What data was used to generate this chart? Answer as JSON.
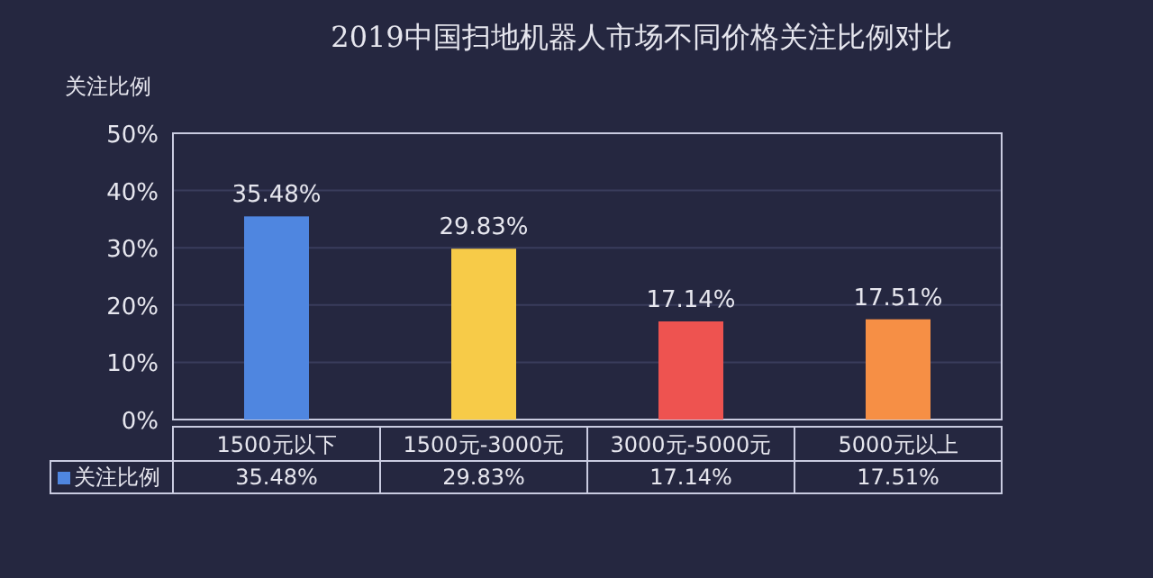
{
  "chart_data": {
    "type": "bar",
    "title": "2019中国扫地机器人市场不同价格关注比例对比",
    "ylabel": "关注比例",
    "categories": [
      "1500元以下",
      "1500元-3000元",
      "3000元-5000元",
      "5000元以上"
    ],
    "series": [
      {
        "name": "关注比例",
        "color": "#4f86e0",
        "colors": [
          "#4f86e0",
          "#f7cb48",
          "#ee5350",
          "#f68f45"
        ],
        "values": [
          35.48,
          29.83,
          17.14,
          17.51
        ],
        "value_labels": [
          "35.48%",
          "29.83%",
          "17.14%",
          "17.51%"
        ]
      }
    ],
    "ylim": [
      0,
      50
    ],
    "yticks": [
      {
        "value": 0,
        "label": "0%"
      },
      {
        "value": 10,
        "label": "10%"
      },
      {
        "value": 20,
        "label": "20%"
      },
      {
        "value": 30,
        "label": "30%"
      },
      {
        "value": 40,
        "label": "40%"
      },
      {
        "value": 50,
        "label": "50%"
      }
    ],
    "grid": "y",
    "legend": "bottom"
  }
}
